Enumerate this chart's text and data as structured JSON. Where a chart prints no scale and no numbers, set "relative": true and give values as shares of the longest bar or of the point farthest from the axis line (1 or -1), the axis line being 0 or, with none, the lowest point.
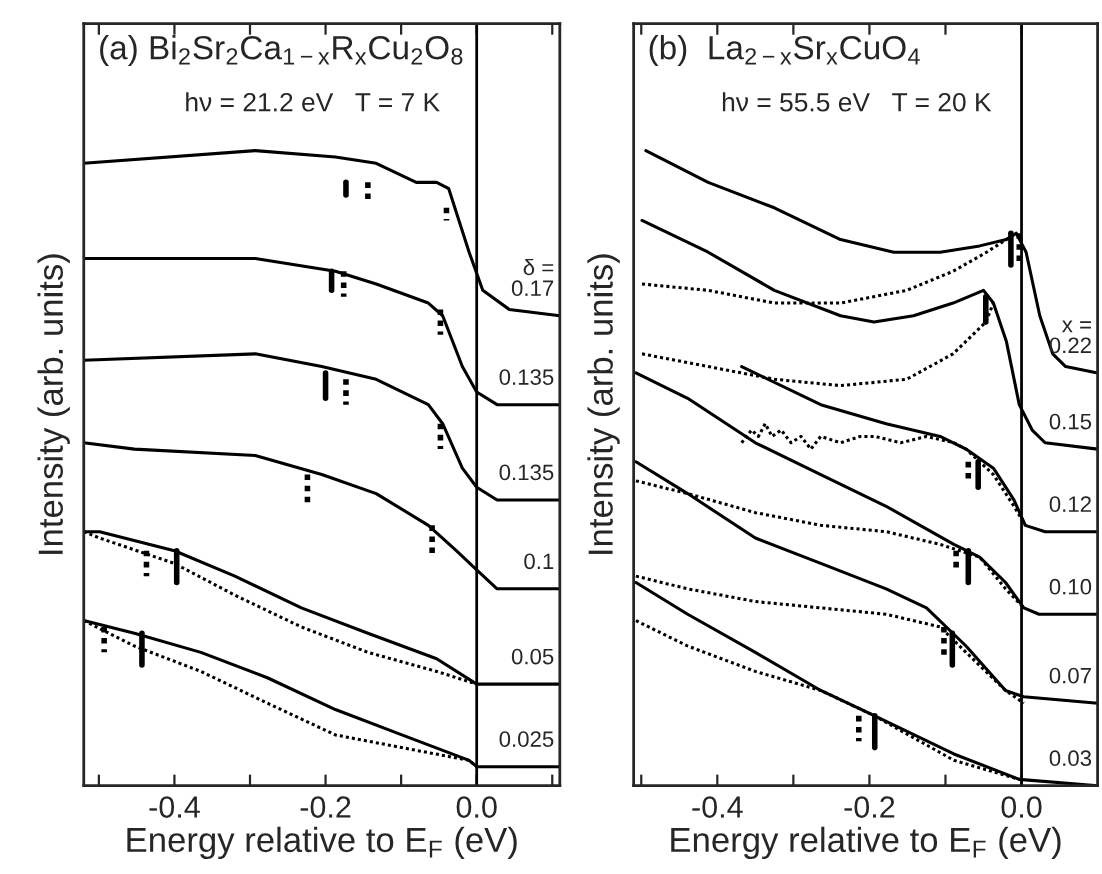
{
  "chart_data": [
    {
      "type": "line",
      "relative": true,
      "title": "(a) Bi$_{2}$Sr$_{2}$Ca$_{1−x}$R$_{x}$Cu$_{2}$O$_{8}$",
      "subtitle": "hν = 21.2 eV   T = 7 K",
      "xlabel": "Energy relative to E$_{F}$ (eV)",
      "ylabel": "Intensity (arb. units)",
      "annotations": [
        "δ ="
      ],
      "xlim": [
        -0.52,
        0.11
      ],
      "xticks": [
        {
          "value": -0.5,
          "label": null
        },
        {
          "value": -0.4,
          "label": "-0.4"
        },
        {
          "value": -0.3,
          "label": null
        },
        {
          "value": -0.2,
          "label": "-0.2"
        },
        {
          "value": -0.1,
          "label": null
        },
        {
          "value": 0,
          "label": "0.0"
        },
        {
          "value": 0.1,
          "label": null
        }
      ],
      "ref_lines": [
        {
          "axis": "x",
          "value": 0,
          "color": "#000000"
        }
      ],
      "series": [
        {
          "name": "0.17",
          "color": "#000000",
          "line_style": "solid",
          "x": [
            -0.52,
            -0.293,
            -0.187,
            -0.133,
            -0.08,
            -0.053,
            -0.037,
            -0.01,
            0.008,
            0.043,
            0.11
          ],
          "values": [
            0.98,
            1.0,
            0.99,
            0.98,
            0.95,
            0.95,
            0.94,
            0.84,
            0.78,
            0.75,
            0.74
          ]
        },
        {
          "name": "0.135",
          "color": "#000000",
          "line_style": "solid",
          "x": [
            -0.52,
            -0.293,
            -0.187,
            -0.133,
            -0.064,
            -0.045,
            -0.019,
            0,
            0.027,
            0.11
          ],
          "values": [
            0.83,
            0.83,
            0.81,
            0.79,
            0.76,
            0.74,
            0.66,
            0.62,
            0.6,
            0.6
          ]
        },
        {
          "name": "0.135",
          "color": "#000000",
          "line_style": "solid",
          "x": [
            -0.52,
            -0.293,
            -0.205,
            -0.133,
            -0.064,
            -0.045,
            -0.019,
            0,
            0.027,
            0.11
          ],
          "values": [
            0.67,
            0.68,
            0.66,
            0.64,
            0.6,
            0.57,
            0.5,
            0.47,
            0.45,
            0.45
          ]
        },
        {
          "name": "0.1",
          "color": "#000000",
          "line_style": "solid",
          "x": [
            -0.52,
            -0.453,
            -0.293,
            -0.205,
            -0.133,
            -0.064,
            -0.027,
            0,
            0.027,
            0.11
          ],
          "values": [
            0.54,
            0.53,
            0.52,
            0.49,
            0.46,
            0.41,
            0.37,
            0.34,
            0.31,
            0.31
          ]
        },
        {
          "name": "0.05",
          "color": "#000000",
          "line_style": "solid",
          "x": [
            -0.52,
            -0.499,
            -0.4,
            -0.32,
            -0.232,
            -0.144,
            -0.053,
            0,
            0.11
          ],
          "values": [
            0.4,
            0.4,
            0.37,
            0.33,
            0.28,
            0.24,
            0.2,
            0.16,
            0.16
          ]
        },
        {
          "color": "#000000",
          "line_style": "dotted",
          "x": [
            -0.52,
            -0.499,
            -0.4,
            -0.32,
            -0.232,
            -0.144,
            -0.053,
            0
          ],
          "values": [
            0.4,
            0.39,
            0.35,
            0.3,
            0.25,
            0.21,
            0.18,
            0.16
          ]
        },
        {
          "name": "0.025",
          "color": "#000000",
          "line_style": "solid",
          "x": [
            -0.52,
            -0.453,
            -0.365,
            -0.277,
            -0.187,
            -0.099,
            -0.01,
            0,
            0.11
          ],
          "values": [
            0.26,
            0.24,
            0.21,
            0.17,
            0.12,
            0.08,
            0.04,
            0.03,
            0.03
          ]
        },
        {
          "color": "#000000",
          "line_style": "dotted",
          "x": [
            -0.52,
            -0.453,
            -0.365,
            -0.277,
            -0.187,
            -0.099,
            -0.01,
            0
          ],
          "values": [
            0.26,
            0.22,
            0.18,
            0.13,
            0.08,
            0.06,
            0.04,
            0.03
          ]
        },
        {
          "color": "#000000",
          "line_style": "solid",
          "x": [
            -0.173,
            -0.173
          ],
          "values": [
            0.95,
            0.93
          ]
        },
        {
          "color": "#000000",
          "line_style": "dotted",
          "x": [
            -0.144,
            -0.144
          ],
          "values": [
            0.95,
            0.92
          ]
        },
        {
          "color": "#000000",
          "line_style": "dotted",
          "x": [
            -0.04,
            -0.04
          ],
          "values": [
            0.91,
            0.89
          ]
        },
        {
          "color": "#000000",
          "line_style": "solid",
          "x": [
            -0.192,
            -0.192
          ],
          "values": [
            0.81,
            0.78
          ]
        },
        {
          "color": "#000000",
          "line_style": "dotted",
          "x": [
            -0.176,
            -0.176
          ],
          "values": [
            0.81,
            0.77
          ]
        },
        {
          "color": "#000000",
          "line_style": "dotted",
          "x": [
            -0.048,
            -0.048
          ],
          "values": [
            0.75,
            0.71
          ]
        },
        {
          "color": "#000000",
          "line_style": "solid",
          "x": [
            -0.2,
            -0.2
          ],
          "values": [
            0.65,
            0.61
          ]
        },
        {
          "color": "#000000",
          "line_style": "dotted",
          "x": [
            -0.173,
            -0.173
          ],
          "values": [
            0.64,
            0.6
          ]
        },
        {
          "color": "#000000",
          "line_style": "dotted",
          "x": [
            -0.048,
            -0.048
          ],
          "values": [
            0.57,
            0.53
          ]
        },
        {
          "color": "#000000",
          "line_style": "dotted",
          "x": [
            -0.224,
            -0.224
          ],
          "values": [
            0.49,
            0.44
          ]
        },
        {
          "color": "#000000",
          "line_style": "dotted",
          "x": [
            -0.059,
            -0.059
          ],
          "values": [
            0.41,
            0.36
          ]
        },
        {
          "color": "#000000",
          "line_style": "dotted",
          "x": [
            -0.437,
            -0.437
          ],
          "values": [
            0.37,
            0.33
          ]
        },
        {
          "color": "#000000",
          "line_style": "solid",
          "x": [
            -0.397,
            -0.397
          ],
          "values": [
            0.37,
            0.32
          ]
        },
        {
          "color": "#000000",
          "line_style": "dotted",
          "x": [
            -0.493,
            -0.493
          ],
          "values": [
            0.25,
            0.21
          ]
        },
        {
          "color": "#000000",
          "line_style": "solid",
          "x": [
            -0.443,
            -0.443
          ],
          "values": [
            0.24,
            0.19
          ]
        }
      ]
    },
    {
      "type": "line",
      "relative": true,
      "title": "(b)  La$_{2−x}$Sr$_{x}$CuO$_{4}$",
      "subtitle": "hν = 55.5 eV   T = 20 K",
      "xlabel": "Energy relative to E$_{F}$ (eV)",
      "ylabel": "Intensity (arb. units)",
      "annotations": [
        "x ="
      ],
      "xlim": [
        -0.51,
        0.1
      ],
      "xticks": [
        {
          "value": -0.5,
          "label": null
        },
        {
          "value": -0.4,
          "label": "-0.4"
        },
        {
          "value": -0.3,
          "label": null
        },
        {
          "value": -0.2,
          "label": "-0.2"
        },
        {
          "value": -0.1,
          "label": null
        },
        {
          "value": 0,
          "label": "0.0"
        }
      ],
      "ref_lines": [
        {
          "axis": "x",
          "value": 0,
          "color": "#000000"
        }
      ],
      "series": [
        {
          "name": "0.22",
          "color": "#000000",
          "line_style": "solid",
          "x": [
            -0.494,
            -0.412,
            -0.325,
            -0.238,
            -0.168,
            -0.107,
            -0.055,
            -0.02,
            -0.007,
            0.006,
            0.024,
            0.041,
            0.058,
            0.1
          ],
          "values": [
            1.0,
            0.95,
            0.91,
            0.86,
            0.84,
            0.84,
            0.85,
            0.86,
            0.87,
            0.84,
            0.74,
            0.68,
            0.66,
            0.65
          ]
        },
        {
          "color": "#000000",
          "line_style": "dotted",
          "x": [
            -0.499,
            -0.412,
            -0.325,
            -0.238,
            -0.151,
            -0.09,
            -0.046,
            -0.02,
            -0.007
          ],
          "values": [
            0.79,
            0.78,
            0.76,
            0.76,
            0.78,
            0.81,
            0.84,
            0.86,
            0.87
          ]
        },
        {
          "name": "0.15",
          "color": "#000000",
          "line_style": "solid",
          "x": [
            -0.499,
            -0.412,
            -0.325,
            -0.238,
            -0.194,
            -0.142,
            -0.09,
            -0.05,
            -0.037,
            -0.02,
            -0.003,
            0.014,
            0.031,
            0.1
          ],
          "values": [
            0.89,
            0.84,
            0.78,
            0.74,
            0.73,
            0.74,
            0.76,
            0.78,
            0.76,
            0.7,
            0.6,
            0.56,
            0.54,
            0.53
          ]
        },
        {
          "color": "#000000",
          "line_style": "dotted",
          "x": [
            -0.499,
            -0.412,
            -0.325,
            -0.238,
            -0.151,
            -0.09,
            -0.047,
            -0.037
          ],
          "values": [
            0.68,
            0.66,
            0.64,
            0.63,
            0.64,
            0.68,
            0.73,
            0.76
          ]
        },
        {
          "name": "0.12",
          "color": "#000000",
          "line_style": "solid",
          "x": [
            -0.368,
            -0.264,
            -0.178,
            -0.107,
            -0.073,
            -0.037,
            -0.01,
            0.005,
            0.031,
            0.1
          ],
          "values": [
            0.66,
            0.6,
            0.57,
            0.55,
            0.53,
            0.5,
            0.45,
            0.41,
            0.4,
            0.4
          ]
        },
        {
          "color": "#000000",
          "line_style": "dotted",
          "x": [
            -0.368,
            -0.355,
            -0.346,
            -0.337,
            -0.328,
            -0.316,
            -0.303,
            -0.29,
            -0.277,
            -0.264,
            -0.238,
            -0.212,
            -0.193,
            -0.159,
            -0.125,
            -0.089,
            -0.073,
            -0.037,
            -0.01,
            0.005
          ],
          "values": [
            0.54,
            0.56,
            0.55,
            0.57,
            0.55,
            0.56,
            0.54,
            0.55,
            0.53,
            0.55,
            0.54,
            0.55,
            0.55,
            0.54,
            0.55,
            0.54,
            0.53,
            0.49,
            0.44,
            0.41
          ]
        },
        {
          "name": "0.10",
          "color": "#000000",
          "line_style": "solid",
          "x": [
            -0.507,
            -0.439,
            -0.35,
            -0.264,
            -0.178,
            -0.089,
            -0.055,
            -0.021,
            0.003,
            0.023,
            0.1
          ],
          "values": [
            0.65,
            0.61,
            0.54,
            0.49,
            0.44,
            0.38,
            0.36,
            0.32,
            0.28,
            0.27,
            0.27
          ]
        },
        {
          "color": "#000000",
          "line_style": "dotted",
          "x": [
            -0.507,
            -0.439,
            -0.35,
            -0.264,
            -0.178,
            -0.107,
            -0.055,
            -0.021,
            0.003
          ],
          "values": [
            0.48,
            0.46,
            0.43,
            0.41,
            0.4,
            0.38,
            0.36,
            0.31,
            0.28
          ]
        },
        {
          "name": "0.07",
          "color": "#000000",
          "line_style": "solid",
          "x": [
            -0.507,
            -0.439,
            -0.35,
            -0.264,
            -0.178,
            -0.125,
            -0.073,
            -0.021,
            0.003,
            0.1
          ],
          "values": [
            0.51,
            0.46,
            0.39,
            0.35,
            0.31,
            0.28,
            0.22,
            0.15,
            0.14,
            0.13
          ]
        },
        {
          "color": "#000000",
          "line_style": "dotted",
          "x": [
            -0.507,
            -0.439,
            -0.35,
            -0.264,
            -0.178,
            -0.107,
            -0.073,
            -0.021,
            0.003
          ],
          "values": [
            0.33,
            0.31,
            0.29,
            0.28,
            0.27,
            0.25,
            0.21,
            0.15,
            0.13
          ]
        },
        {
          "name": "0.03",
          "color": "#000000",
          "line_style": "solid",
          "x": [
            -0.507,
            -0.439,
            -0.35,
            -0.264,
            -0.193,
            -0.089,
            -0.003,
            0.1
          ],
          "values": [
            0.32,
            0.27,
            0.21,
            0.15,
            0.11,
            0.05,
            0.01,
            0.0
          ]
        },
        {
          "color": "#000000",
          "line_style": "dotted",
          "x": [
            -0.507,
            -0.439,
            -0.35,
            -0.264,
            -0.193,
            -0.089,
            -0.003
          ],
          "values": [
            0.26,
            0.22,
            0.18,
            0.15,
            0.11,
            0.04,
            0.01
          ]
        },
        {
          "color": "#000000",
          "line_style": "solid",
          "x": [
            -0.014,
            -0.014
          ],
          "values": [
            0.87,
            0.82
          ]
        },
        {
          "color": "#000000",
          "line_style": "dotted",
          "x": [
            -0.003,
            -0.003
          ],
          "values": [
            0.87,
            0.82
          ]
        },
        {
          "color": "#000000",
          "line_style": "solid",
          "x": [
            -0.047,
            -0.047
          ],
          "values": [
            0.77,
            0.73
          ]
        },
        {
          "color": "#000000",
          "line_style": "dotted",
          "x": [
            -0.07,
            -0.07
          ],
          "values": [
            0.51,
            0.48
          ]
        },
        {
          "color": "#000000",
          "line_style": "solid",
          "x": [
            -0.057,
            -0.057
          ],
          "values": [
            0.51,
            0.47
          ]
        },
        {
          "color": "#000000",
          "line_style": "dotted",
          "x": [
            -0.086,
            -0.086
          ],
          "values": [
            0.37,
            0.34
          ]
        },
        {
          "color": "#000000",
          "line_style": "solid",
          "x": [
            -0.07,
            -0.07
          ],
          "values": [
            0.37,
            0.32
          ]
        },
        {
          "color": "#000000",
          "line_style": "dotted",
          "x": [
            -0.102,
            -0.102
          ],
          "values": [
            0.25,
            0.2
          ]
        },
        {
          "color": "#000000",
          "line_style": "solid",
          "x": [
            -0.091,
            -0.091
          ],
          "values": [
            0.24,
            0.19
          ]
        },
        {
          "color": "#000000",
          "line_style": "dotted",
          "x": [
            -0.214,
            -0.214
          ],
          "values": [
            0.11,
            0.07
          ]
        },
        {
          "color": "#000000",
          "line_style": "solid",
          "x": [
            -0.193,
            -0.193
          ],
          "values": [
            0.11,
            0.06
          ]
        }
      ]
    }
  ]
}
